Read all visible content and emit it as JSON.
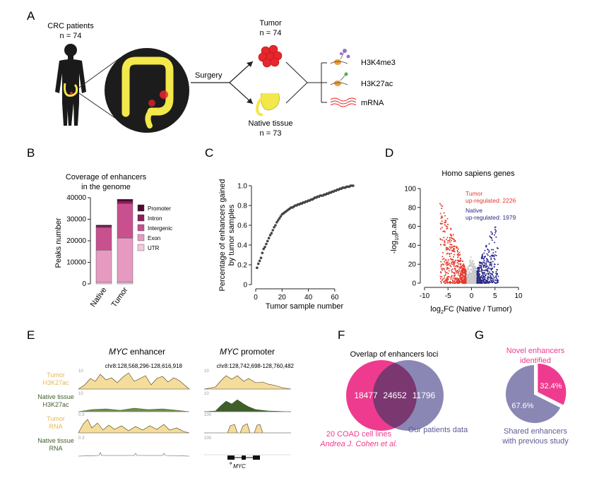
{
  "panels": {
    "A": {
      "letter": "A",
      "patients_label": "CRC patients",
      "patients_n": "n = 74",
      "surgery_label": "Surgery",
      "tumor_label": "Tumor",
      "tumor_n": "n = 74",
      "native_label": "Native tissue",
      "native_n": "n = 73",
      "assays": [
        "H3K4me3",
        "H3K27ac",
        "mRNA"
      ]
    },
    "B": {
      "letter": "B",
      "title_line1": "Coverage of enhancers",
      "title_line2": "in the genome",
      "ylabel": "Peaks number",
      "legend": [
        "Promoter",
        "Intron",
        "Intergenic",
        "Exon",
        "UTR"
      ]
    },
    "C": {
      "letter": "C"
    },
    "D": {
      "letter": "D",
      "title": "Homo sapiens genes",
      "tumor_note_line1": "Tumor",
      "tumor_note_line2": "up-regulated: 2226",
      "native_note_line1": "Native",
      "native_note_line2": "up-regulated: 1979",
      "ylabel_prefix": "-log",
      "ylabel_sub": "10",
      "ylabel_suffix": "p.adj",
      "xlabel_prefix": "log",
      "xlabel_sub": "2",
      "xlabel_suffix": "FC (Native / Tumor)"
    },
    "E": {
      "letter": "E",
      "enhancer_title_italic": "MYC",
      "enhancer_title_rest": " enhancer",
      "promoter_title_italic": "MYC",
      "promoter_title_rest": " promoter",
      "enhancer_coords": "chr8:128,568,296-128,616,918",
      "promoter_coords": "chr8:128,742,698-128,760,482",
      "tracks": [
        {
          "line1": "Tumor",
          "line2": "H3K27ac",
          "scale_left": "10",
          "scale_right": "10"
        },
        {
          "line1": "Native tissue",
          "line2": "H3K27ac",
          "scale_left": "10",
          "scale_right": "10"
        },
        {
          "line1": "Tumor",
          "line2": "RNA",
          "scale_left": "0.3",
          "scale_right": "100"
        },
        {
          "line1": "Native tissue",
          "line2": "RNA",
          "scale_left": "0.3",
          "scale_right": "100"
        }
      ],
      "gene_label": "MYC"
    },
    "F": {
      "letter": "F",
      "title": "Overlap of enhancers loci",
      "left_only": "18477",
      "overlap": "24652",
      "right_only": "11796",
      "left_name": "20 COAD cell lines",
      "left_cite": "Andrea J. Cohen et al.",
      "right_name": "Our patients data"
    },
    "G": {
      "letter": "G",
      "novel_line1": "Novel enhancers",
      "novel_line2": "identified",
      "novel_pct": "32.4%",
      "shared_pct": "67.6%",
      "shared_line1": "Shared enhancers",
      "shared_line2": "with previous study"
    }
  },
  "colors": {
    "tumor_red": "#e8262d",
    "native_yellow": "#f3e84a",
    "pink_magenta": "#ee3b8f",
    "slate_blue": "#8a87b5",
    "volcano_red": "#e23a2c",
    "volcano_blue": "#2a2a8a",
    "track_tumor": "#e8b75a",
    "track_native": "#3f5f2a"
  },
  "chart_data": [
    {
      "type": "bar",
      "panel": "B",
      "title": "Coverage of enhancers in the genome",
      "xlabel": "",
      "ylabel": "Peaks number",
      "categories": [
        "Native",
        "Tumor"
      ],
      "ylim": [
        0,
        40000
      ],
      "yticks": [
        0,
        10000,
        20000,
        30000,
        40000
      ],
      "stacked": true,
      "series": [
        {
          "name": "UTR",
          "values": [
            700,
            800
          ],
          "color": "#f6c7dd"
        },
        {
          "name": "Exon",
          "values": [
            15000,
            20500
          ],
          "color": "#e79ac0"
        },
        {
          "name": "Intergenic",
          "values": [
            10500,
            16000
          ],
          "color": "#c9508f"
        },
        {
          "name": "Intron",
          "values": [
            600,
            1000
          ],
          "color": "#8e1d5a"
        },
        {
          "name": "Promoter",
          "values": [
            500,
            1000
          ],
          "color": "#4a0d2c"
        }
      ]
    },
    {
      "type": "scatter",
      "panel": "C",
      "title": "",
      "xlabel": "Tumor sample number",
      "ylabel": "Percentage of enhancers gained by tumor samples",
      "xlim": [
        0,
        74
      ],
      "ylim": [
        0,
        1.0
      ],
      "xticks": [
        0,
        20,
        40,
        60
      ],
      "yticks": [
        0,
        0.2,
        0.4,
        0.6,
        0.8,
        1.0
      ],
      "x": [
        1,
        2,
        3,
        4,
        5,
        6,
        7,
        8,
        9,
        10,
        11,
        12,
        13,
        14,
        15,
        16,
        17,
        18,
        19,
        20,
        21,
        22,
        23,
        24,
        25,
        26,
        27,
        28,
        29,
        30,
        31,
        32,
        33,
        34,
        35,
        36,
        37,
        38,
        39,
        40,
        41,
        42,
        43,
        44,
        45,
        46,
        47,
        48,
        49,
        50,
        51,
        52,
        53,
        54,
        55,
        56,
        57,
        58,
        59,
        60,
        61,
        62,
        63,
        64,
        65,
        66,
        67,
        68,
        69,
        70,
        71,
        72,
        73,
        74
      ],
      "y": [
        0.17,
        0.21,
        0.24,
        0.27,
        0.32,
        0.36,
        0.38,
        0.41,
        0.44,
        0.47,
        0.5,
        0.52,
        0.55,
        0.58,
        0.6,
        0.63,
        0.65,
        0.67,
        0.69,
        0.71,
        0.72,
        0.73,
        0.74,
        0.75,
        0.76,
        0.77,
        0.78,
        0.78,
        0.79,
        0.8,
        0.8,
        0.81,
        0.81,
        0.82,
        0.82,
        0.83,
        0.83,
        0.84,
        0.84,
        0.85,
        0.85,
        0.86,
        0.86,
        0.87,
        0.88,
        0.88,
        0.89,
        0.89,
        0.9,
        0.9,
        0.9,
        0.91,
        0.91,
        0.92,
        0.92,
        0.93,
        0.93,
        0.94,
        0.94,
        0.95,
        0.95,
        0.96,
        0.96,
        0.97,
        0.97,
        0.98,
        0.98,
        0.98,
        0.99,
        0.99,
        0.99,
        1.0,
        1.0,
        1.0
      ]
    },
    {
      "type": "scatter",
      "panel": "D",
      "title": "Homo sapiens genes",
      "xlabel": "log2FC (Native / Tumor)",
      "ylabel": "-log10p.adj",
      "xlim": [
        -10,
        10
      ],
      "ylim": [
        0,
        100
      ],
      "xticks": [
        -10,
        -5,
        0,
        5,
        10
      ],
      "yticks": [
        0,
        20,
        40,
        60,
        80,
        100
      ],
      "series": [
        {
          "name": "Tumor",
          "count": 2226,
          "color": "#e23a2c"
        },
        {
          "name": "Native",
          "count": 1979,
          "color": "#2a2a8a"
        }
      ]
    },
    {
      "type": "pie",
      "panel": "G",
      "title": "",
      "labels": [
        "Novel enhancers identified",
        "Shared enhancers with previous study"
      ],
      "values": [
        32.4,
        67.6
      ],
      "colors": [
        "#ee3b8f",
        "#8a87b5"
      ]
    }
  ]
}
